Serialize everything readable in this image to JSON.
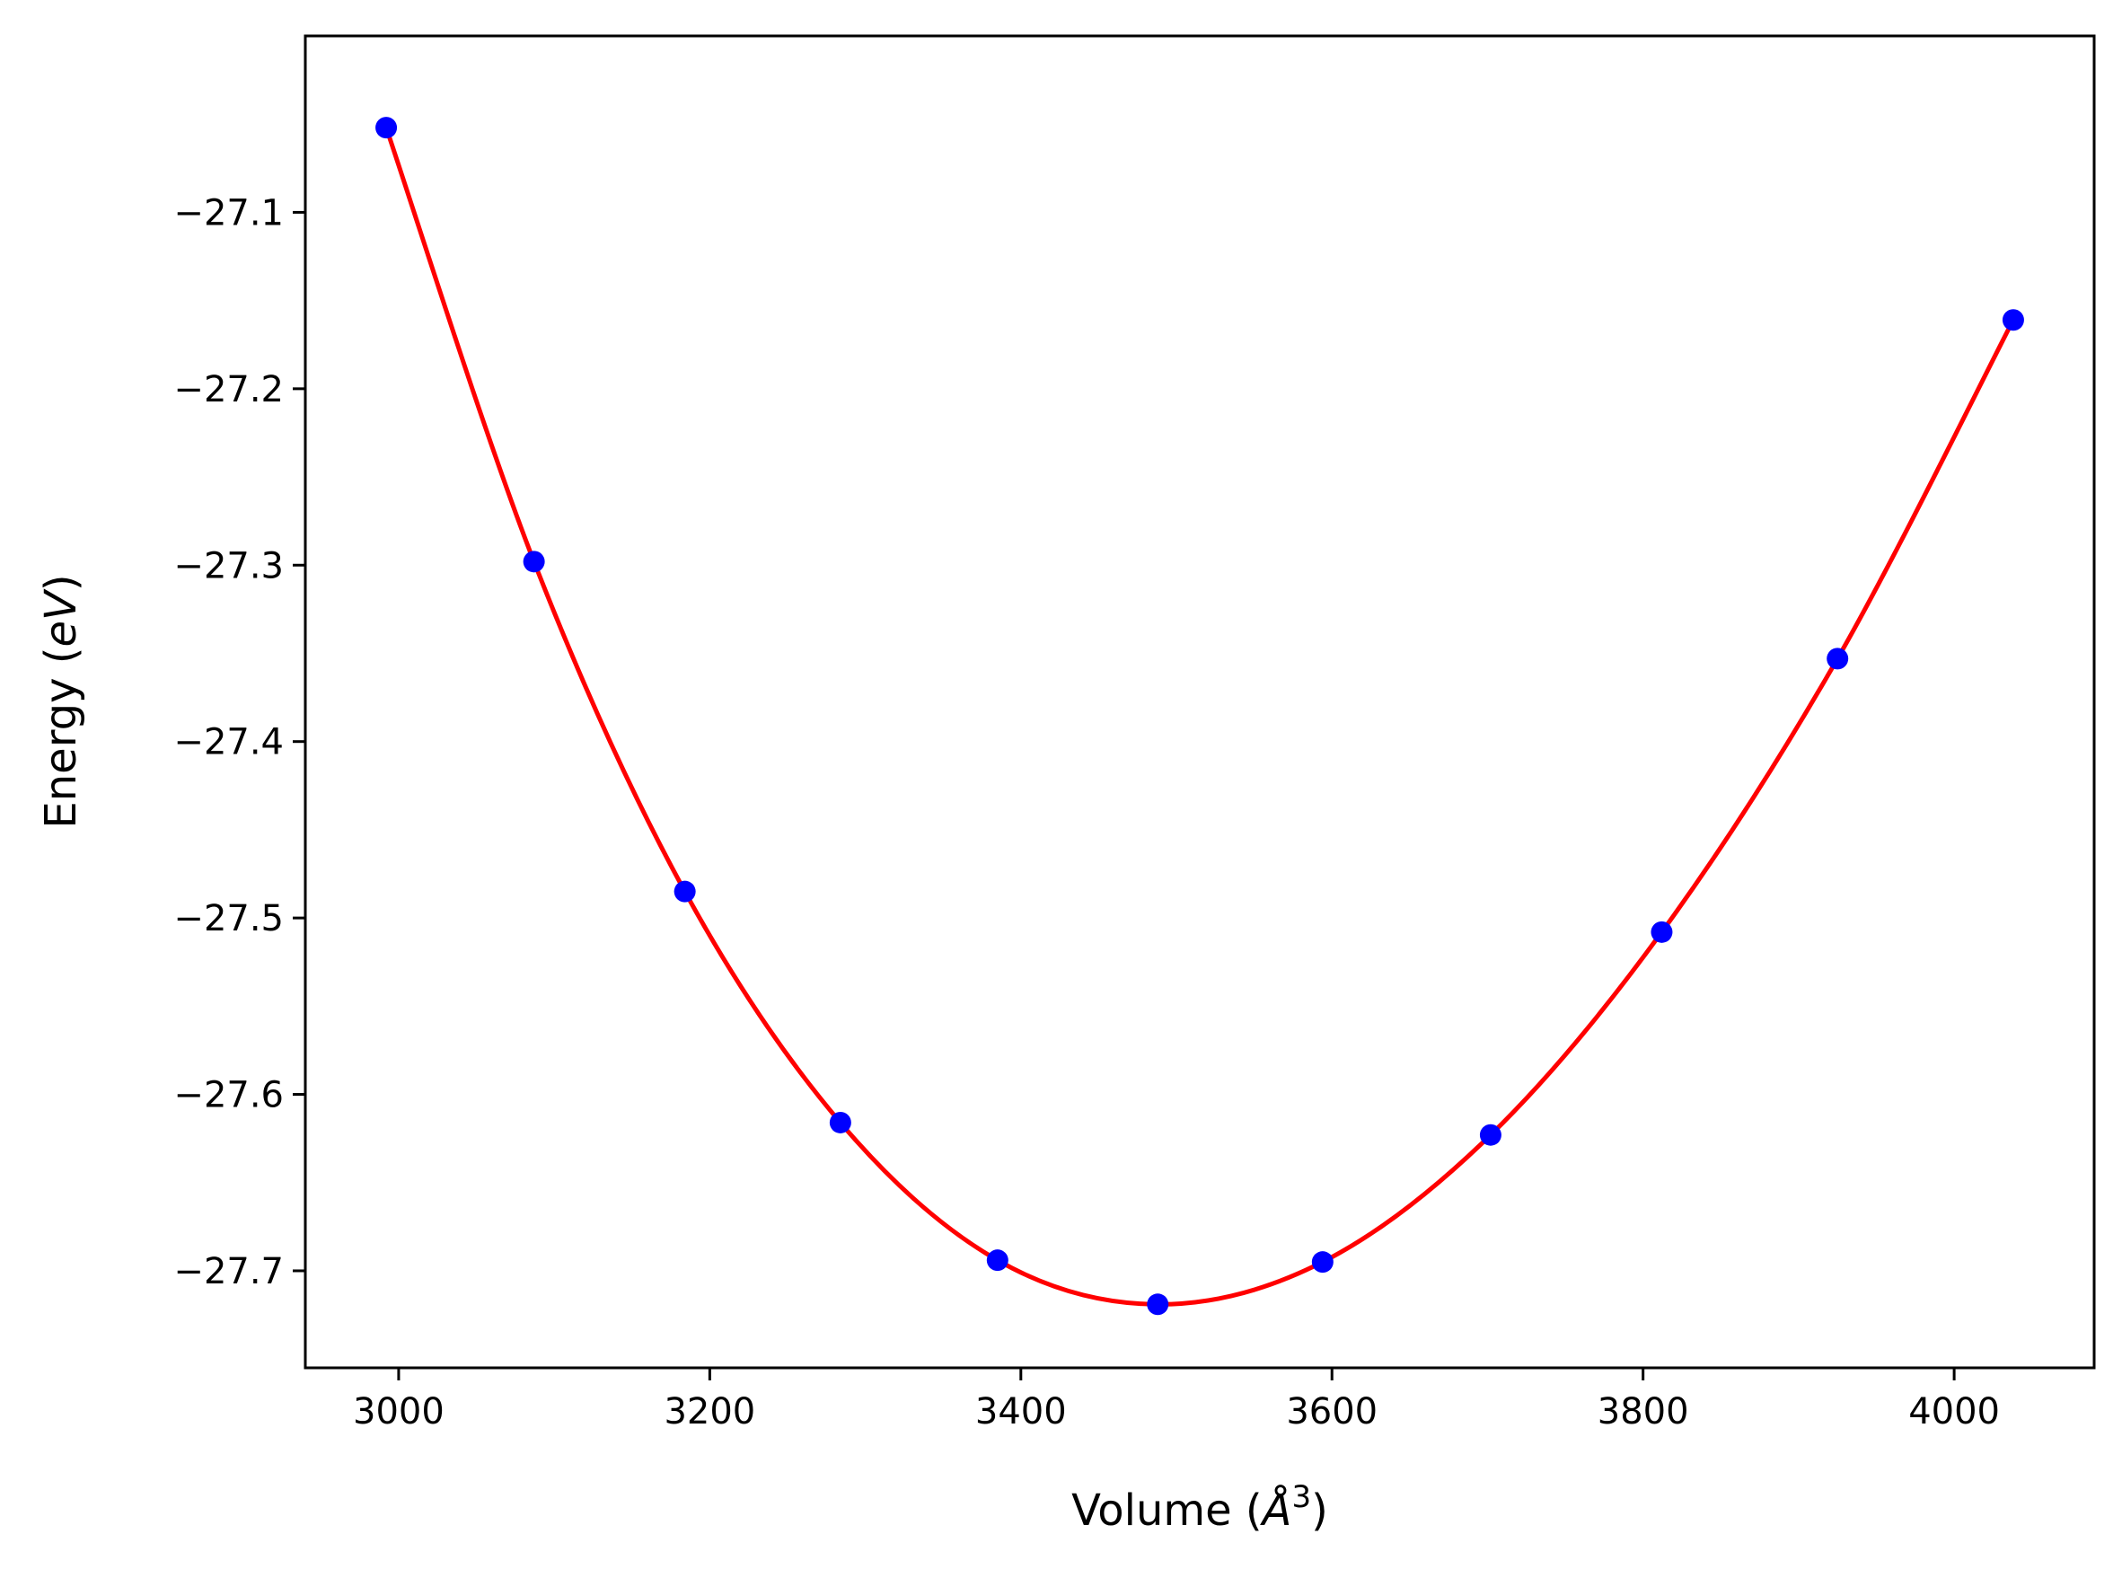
{
  "chart_data": {
    "type": "scatter",
    "title": "",
    "xlabel": "Volume (Å³)",
    "ylabel": "Energy (eV)",
    "xlabel_parts": {
      "prefix": "Volume (",
      "unit": "Å",
      "power": "3",
      "suffix": ")"
    },
    "ylabel_parts": {
      "prefix": "Energy (",
      "unit": "eV",
      "suffix": ")"
    },
    "xlim": [
      2940,
      4090
    ],
    "ylim": [
      -27.755,
      -27.0
    ],
    "xticks": [
      3000,
      3200,
      3400,
      3600,
      3800,
      4000
    ],
    "xtick_labels": [
      "3000",
      "3200",
      "3400",
      "3600",
      "3800",
      "4000"
    ],
    "yticks": [
      -27.1,
      -27.2,
      -27.3,
      -27.4,
      -27.5,
      -27.6,
      -27.7
    ],
    "ytick_labels": [
      "−27.1",
      "−27.2",
      "−27.3",
      "−27.4",
      "−27.5",
      "−27.6",
      "−27.7"
    ],
    "grid": false,
    "series": [
      {
        "kind": "points",
        "color": "#0000ff",
        "x": [
          2992,
          3087,
          3184,
          3284,
          3385,
          3488,
          3594,
          3702,
          3812,
          3925,
          4038
        ],
        "y": [
          -27.052,
          -27.298,
          -27.485,
          -27.616,
          -27.694,
          -27.719,
          -27.695,
          -27.623,
          -27.508,
          -27.353,
          -27.161
        ]
      },
      {
        "kind": "fit-curve",
        "color": "#ff0000",
        "x": [
          2992,
          3087,
          3184,
          3284,
          3385,
          3488,
          3594,
          3702,
          3812,
          3925,
          4038
        ],
        "y": [
          -27.052,
          -27.298,
          -27.485,
          -27.616,
          -27.694,
          -27.719,
          -27.695,
          -27.623,
          -27.508,
          -27.353,
          -27.161
        ]
      }
    ]
  }
}
